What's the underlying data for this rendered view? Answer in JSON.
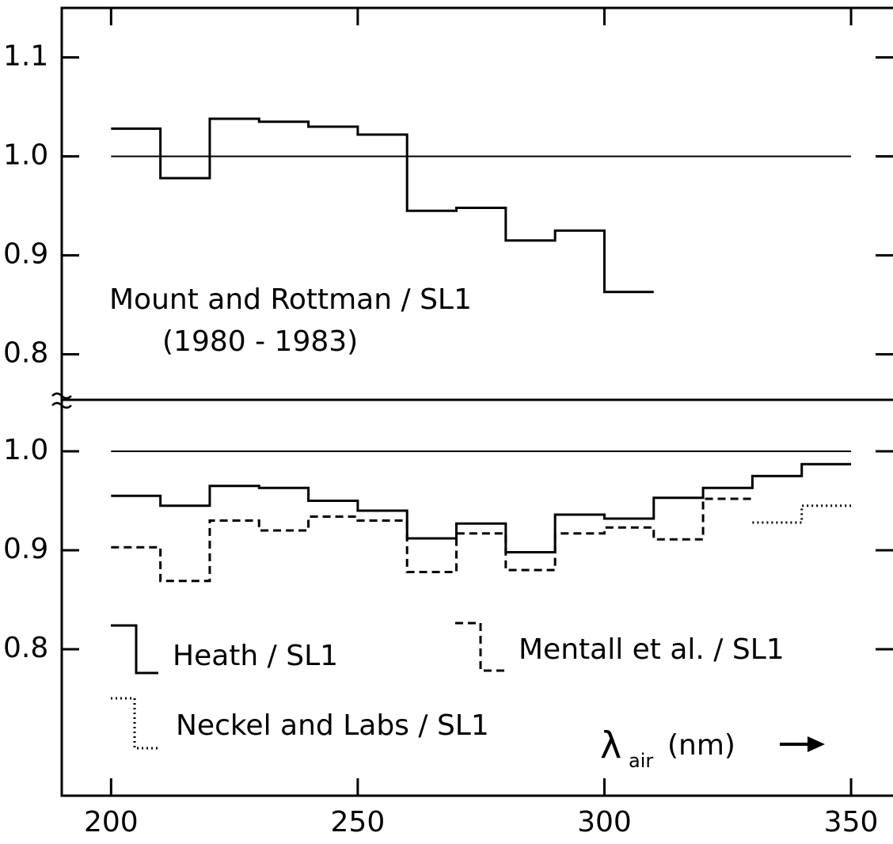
{
  "chart_data": [
    {
      "type": "step",
      "xlim": [
        190,
        358.5
      ],
      "xticks": [
        200,
        250,
        300,
        350
      ],
      "ylim": [
        0.754,
        1.15
      ],
      "yticks": [
        0.8,
        0.9,
        {
          "value": 1,
          "label": "1.0"
        },
        1.1
      ],
      "reference": 1,
      "annotations": [
        "Mount and Rottman / SL1",
        "(1980 - 1983)"
      ],
      "series": [
        {
          "style": "solid",
          "color": "#000000",
          "bins": [
            200,
            210,
            220,
            230,
            240,
            250,
            260,
            270,
            280,
            290,
            300,
            310
          ],
          "values": [
            1.028,
            0.978,
            1.038,
            1.035,
            1.03,
            1.022,
            0.945,
            0.948,
            0.915,
            0.925,
            0.863
          ]
        }
      ]
    },
    {
      "type": "step",
      "xlim": [
        190,
        358.5
      ],
      "xticks": [
        200,
        250,
        300,
        350
      ],
      "ylim": [
        0.652,
        1.052
      ],
      "yticks": [
        0.8,
        0.9,
        {
          "value": 1,
          "label": "1.0"
        }
      ],
      "reference": 1,
      "xlabel_symbol": "λ",
      "xlabel_subscript": "air",
      "xlabel_unit": "(nm)",
      "series": [
        {
          "name": "Heath / SL1",
          "style": "solid",
          "color": "#000000",
          "bins": [
            200,
            210,
            220,
            230,
            240,
            250,
            260,
            270,
            280,
            290,
            300,
            310,
            320,
            330,
            340,
            350
          ],
          "values": [
            0.955,
            0.945,
            0.965,
            0.963,
            0.95,
            0.94,
            0.912,
            0.927,
            0.898,
            0.936,
            0.932,
            0.953,
            0.963,
            0.975,
            0.987
          ]
        },
        {
          "name": "Mentall et al. / SL1",
          "style": "dashed",
          "color": "#000000",
          "bins": [
            200,
            210,
            220,
            230,
            240,
            250,
            260,
            270,
            280,
            290,
            300,
            310,
            320,
            330
          ],
          "values": [
            0.903,
            0.869,
            0.93,
            0.92,
            0.934,
            0.93,
            0.878,
            0.917,
            0.88,
            0.917,
            0.923,
            0.911,
            0.952
          ]
        },
        {
          "name": "Neckel and Labs / SL1",
          "style": "dotted",
          "color": "#000000",
          "bins": [
            330,
            340,
            350
          ],
          "values": [
            0.928,
            0.945
          ]
        }
      ]
    }
  ]
}
